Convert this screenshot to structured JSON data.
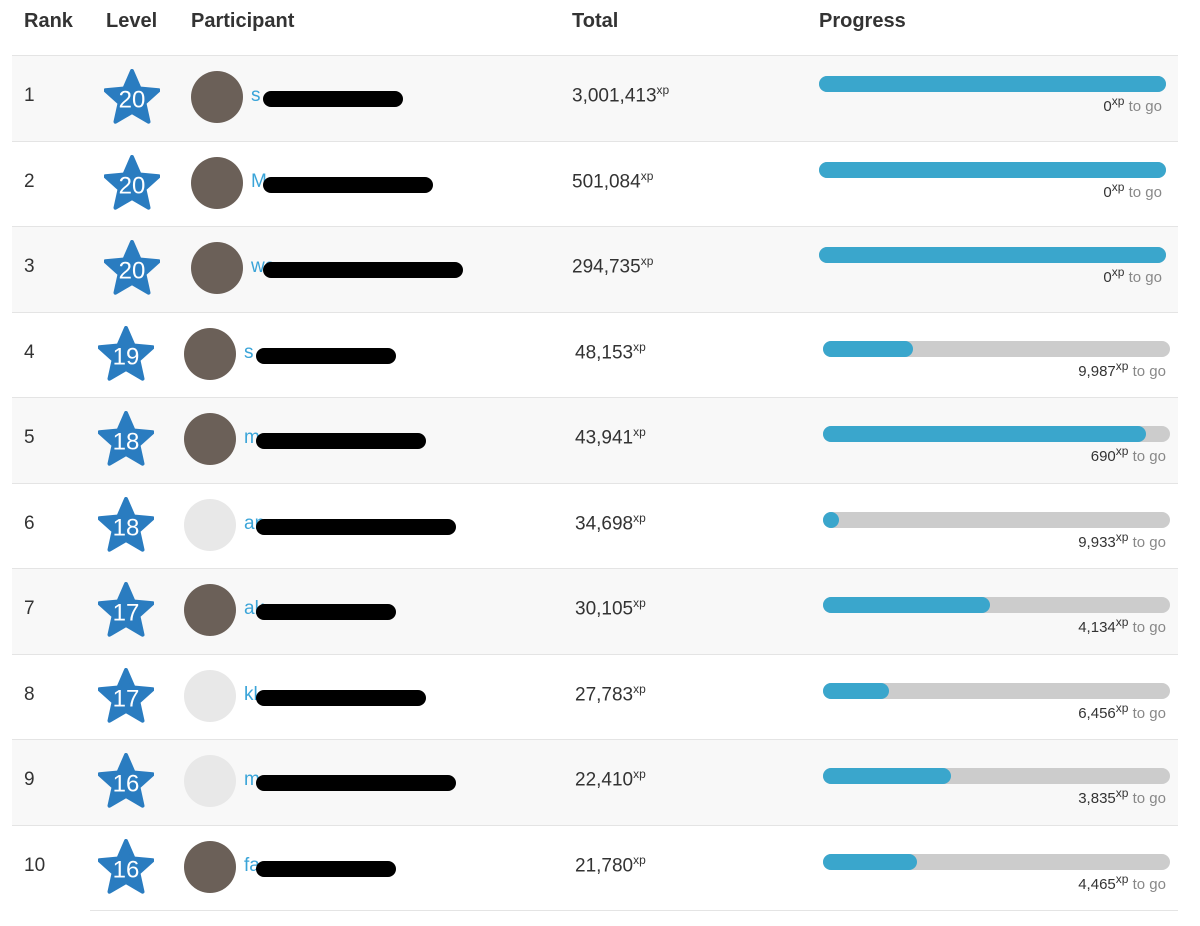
{
  "header": {
    "columns": [
      "Rank",
      "Level",
      "Participant",
      "Total",
      "Progress"
    ]
  },
  "unit": "xp",
  "remaining_suffix": "to go",
  "rows": [
    {
      "rank": 1,
      "level": 20,
      "participant": "s",
      "total": "3,001,413",
      "remaining": "0",
      "progress": 100
    },
    {
      "rank": 2,
      "level": 20,
      "participant": "M",
      "total": "501,084",
      "remaining": "0",
      "progress": 100
    },
    {
      "rank": 3,
      "level": 20,
      "participant": "wa",
      "total": "294,735",
      "remaining": "0",
      "progress": 100
    },
    {
      "rank": 4,
      "level": 19,
      "participant": "s",
      "total": "48,153",
      "remaining": "9,987",
      "progress": 26
    },
    {
      "rank": 5,
      "level": 18,
      "participant": "m",
      "total": "43,941",
      "remaining": "690",
      "progress": 93
    },
    {
      "rank": 6,
      "level": 18,
      "participant": "an",
      "total": "34,698",
      "remaining": "9,933",
      "progress": 3
    },
    {
      "rank": 7,
      "level": 17,
      "participant": "ak",
      "total": "30,105",
      "remaining": "4,134",
      "progress": 48
    },
    {
      "rank": 8,
      "level": 17,
      "participant": "kl",
      "total": "27,783",
      "remaining": "6,456",
      "progress": 19
    },
    {
      "rank": 9,
      "level": 16,
      "participant": "m",
      "total": "22,410",
      "remaining": "3,835",
      "progress": 37
    },
    {
      "rank": 10,
      "level": 16,
      "participant": "fa",
      "total": "21,780",
      "remaining": "4,465",
      "progress": 27
    }
  ]
}
